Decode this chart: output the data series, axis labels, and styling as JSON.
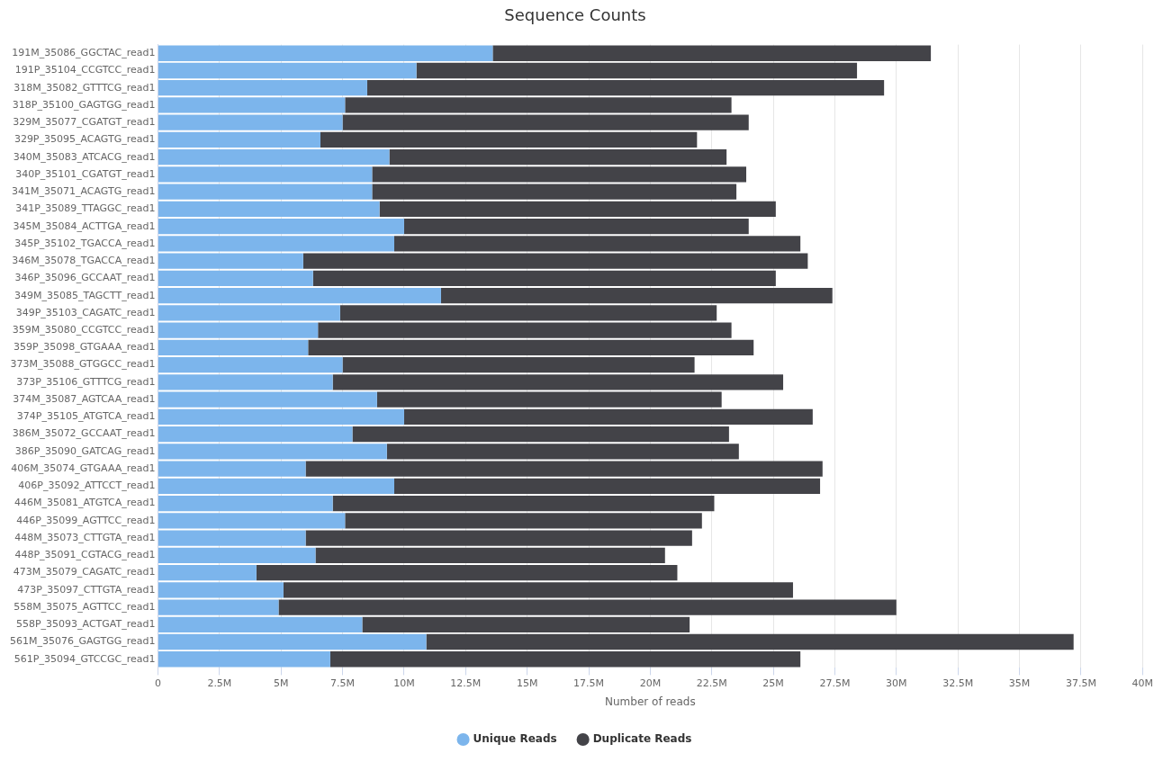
{
  "chart_data": {
    "type": "bar",
    "title": "Sequence Counts",
    "orientation": "horizontal",
    "stacked": true,
    "categories": [
      "191M_35086_GGCTAC_read1",
      "191P_35104_CCGTCC_read1",
      "318M_35082_GTTTCG_read1",
      "318P_35100_GAGTGG_read1",
      "329M_35077_CGATGT_read1",
      "329P_35095_ACAGTG_read1",
      "340M_35083_ATCACG_read1",
      "340P_35101_CGATGT_read1",
      "341M_35071_ACAGTG_read1",
      "341P_35089_TTAGGC_read1",
      "345M_35084_ACTTGA_read1",
      "345P_35102_TGACCA_read1",
      "346M_35078_TGACCA_read1",
      "346P_35096_GCCAAT_read1",
      "349M_35085_TAGCTT_read1",
      "349P_35103_CAGATC_read1",
      "359M_35080_CCGTCC_read1",
      "359P_35098_GTGAAA_read1",
      "373M_35088_GTGGCC_read1",
      "373P_35106_GTTTCG_read1",
      "374M_35087_AGTCAA_read1",
      "374P_35105_ATGTCA_read1",
      "386M_35072_GCCAAT_read1",
      "386P_35090_GATCAG_read1",
      "406M_35074_GTGAAA_read1",
      "406P_35092_ATTCCT_read1",
      "446M_35081_ATGTCA_read1",
      "446P_35099_AGTTCC_read1",
      "448M_35073_CTTGTA_read1",
      "448P_35091_CGTACG_read1",
      "473M_35079_CAGATC_read1",
      "473P_35097_CTTGTA_read1",
      "558M_35075_AGTTCC_read1",
      "558P_35093_ACTGAT_read1",
      "561M_35076_GAGTGG_read1",
      "561P_35094_GTCCGC_read1"
    ],
    "series": [
      {
        "name": "Unique Reads",
        "color": "#7cb5ec",
        "values": [
          13600000,
          10500000,
          8500000,
          7600000,
          7500000,
          6600000,
          9400000,
          8700000,
          8700000,
          9000000,
          10000000,
          9600000,
          5900000,
          6300000,
          11500000,
          7400000,
          6500000,
          6100000,
          7500000,
          7100000,
          8900000,
          10000000,
          7900000,
          9300000,
          6000000,
          9600000,
          7100000,
          7600000,
          6000000,
          6400000,
          4000000,
          5100000,
          4900000,
          8300000,
          10900000,
          7000000
        ]
      },
      {
        "name": "Duplicate Reads",
        "color": "#434348",
        "values": [
          17800000,
          17900000,
          21000000,
          15700000,
          16500000,
          15300000,
          13700000,
          15200000,
          14800000,
          16100000,
          14000000,
          16500000,
          20500000,
          18800000,
          15900000,
          15300000,
          16800000,
          18100000,
          14300000,
          18300000,
          14000000,
          16600000,
          15300000,
          14300000,
          21000000,
          17300000,
          15500000,
          14500000,
          15700000,
          14200000,
          17100000,
          20700000,
          25100000,
          13300000,
          26300000,
          19100000
        ]
      }
    ],
    "xlabel": "Number of reads",
    "xlim": [
      0,
      40000000
    ],
    "xticks": [
      0,
      {
        "value": 2500000,
        "label": "2.5M"
      },
      {
        "value": 5000000,
        "label": "5M"
      },
      {
        "value": 7500000,
        "label": "7.5M"
      },
      {
        "value": 10000000,
        "label": "10M"
      },
      {
        "value": 12500000,
        "label": "12.5M"
      },
      {
        "value": 15000000,
        "label": "15M"
      },
      {
        "value": 17500000,
        "label": "17.5M"
      },
      {
        "value": 20000000,
        "label": "20M"
      },
      {
        "value": 22500000,
        "label": "22.5M"
      },
      {
        "value": 25000000,
        "label": "25M"
      },
      {
        "value": 27500000,
        "label": "27.5M"
      },
      {
        "value": 30000000,
        "label": "30M"
      },
      {
        "value": 32500000,
        "label": "32.5M"
      },
      {
        "value": 35000000,
        "label": "35M"
      },
      {
        "value": 37500000,
        "label": "37.5M"
      },
      {
        "value": 40000000,
        "label": "40M"
      }
    ],
    "grid": "x",
    "legend": "bottom"
  }
}
